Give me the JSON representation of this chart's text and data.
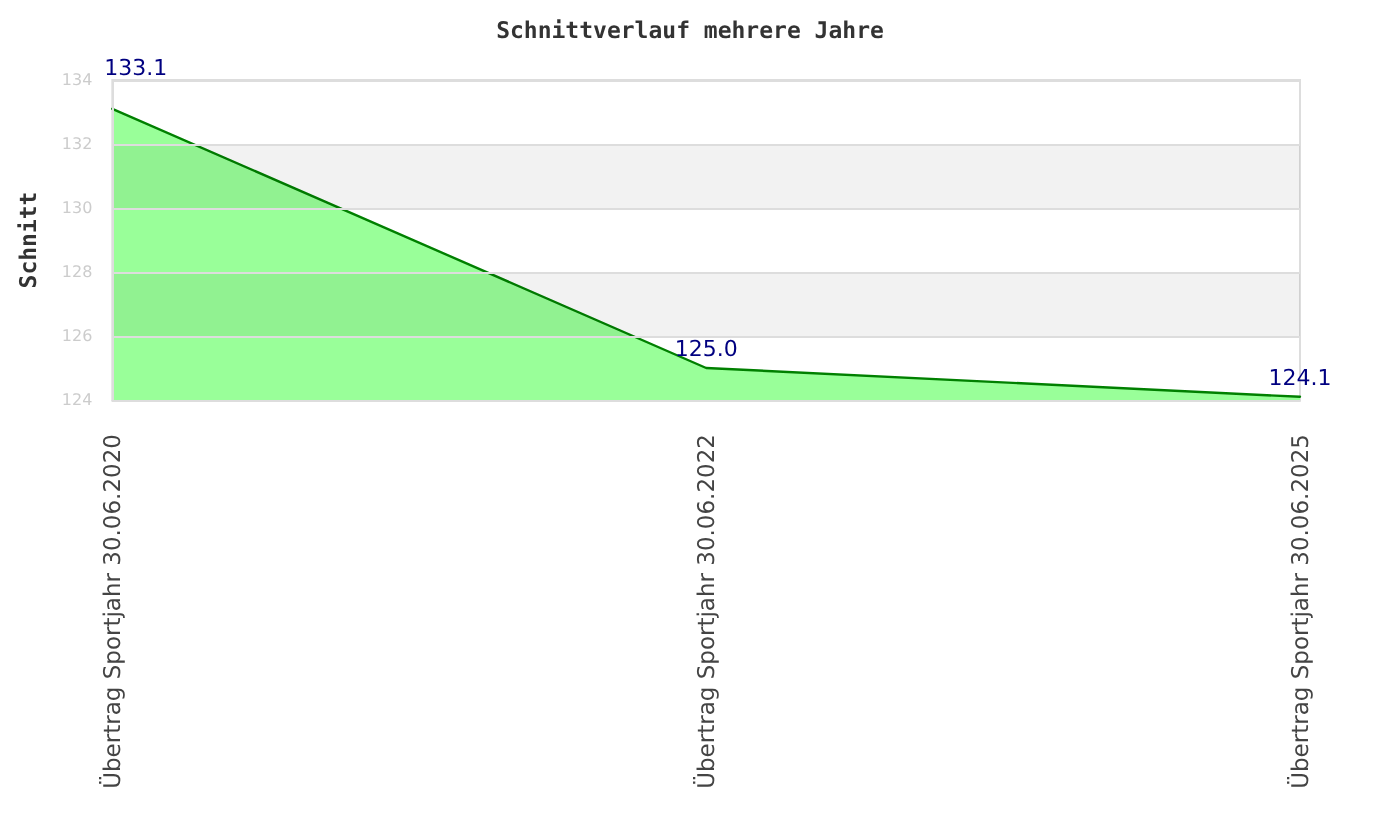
{
  "chart_data": {
    "type": "area",
    "title": "Schnittverlauf mehrere Jahre",
    "ylabel": "Schnitt",
    "categories": [
      "Übertrag Sportjahr 30.06.2020",
      "Übertrag Sportjahr 30.06.2022",
      "Übertrag Sportjahr 30.06.2025"
    ],
    "series": [
      {
        "color": "#99ff99",
        "values": [
          133.1,
          125.0,
          124.1
        ],
        "value_labels": [
          "133.1",
          "125.0",
          "124.1"
        ]
      }
    ],
    "ylim": [
      124,
      134
    ],
    "yticks": [
      124,
      126,
      128,
      130,
      132,
      134
    ],
    "grid": "y",
    "marker": "none",
    "line_style": "solid"
  }
}
